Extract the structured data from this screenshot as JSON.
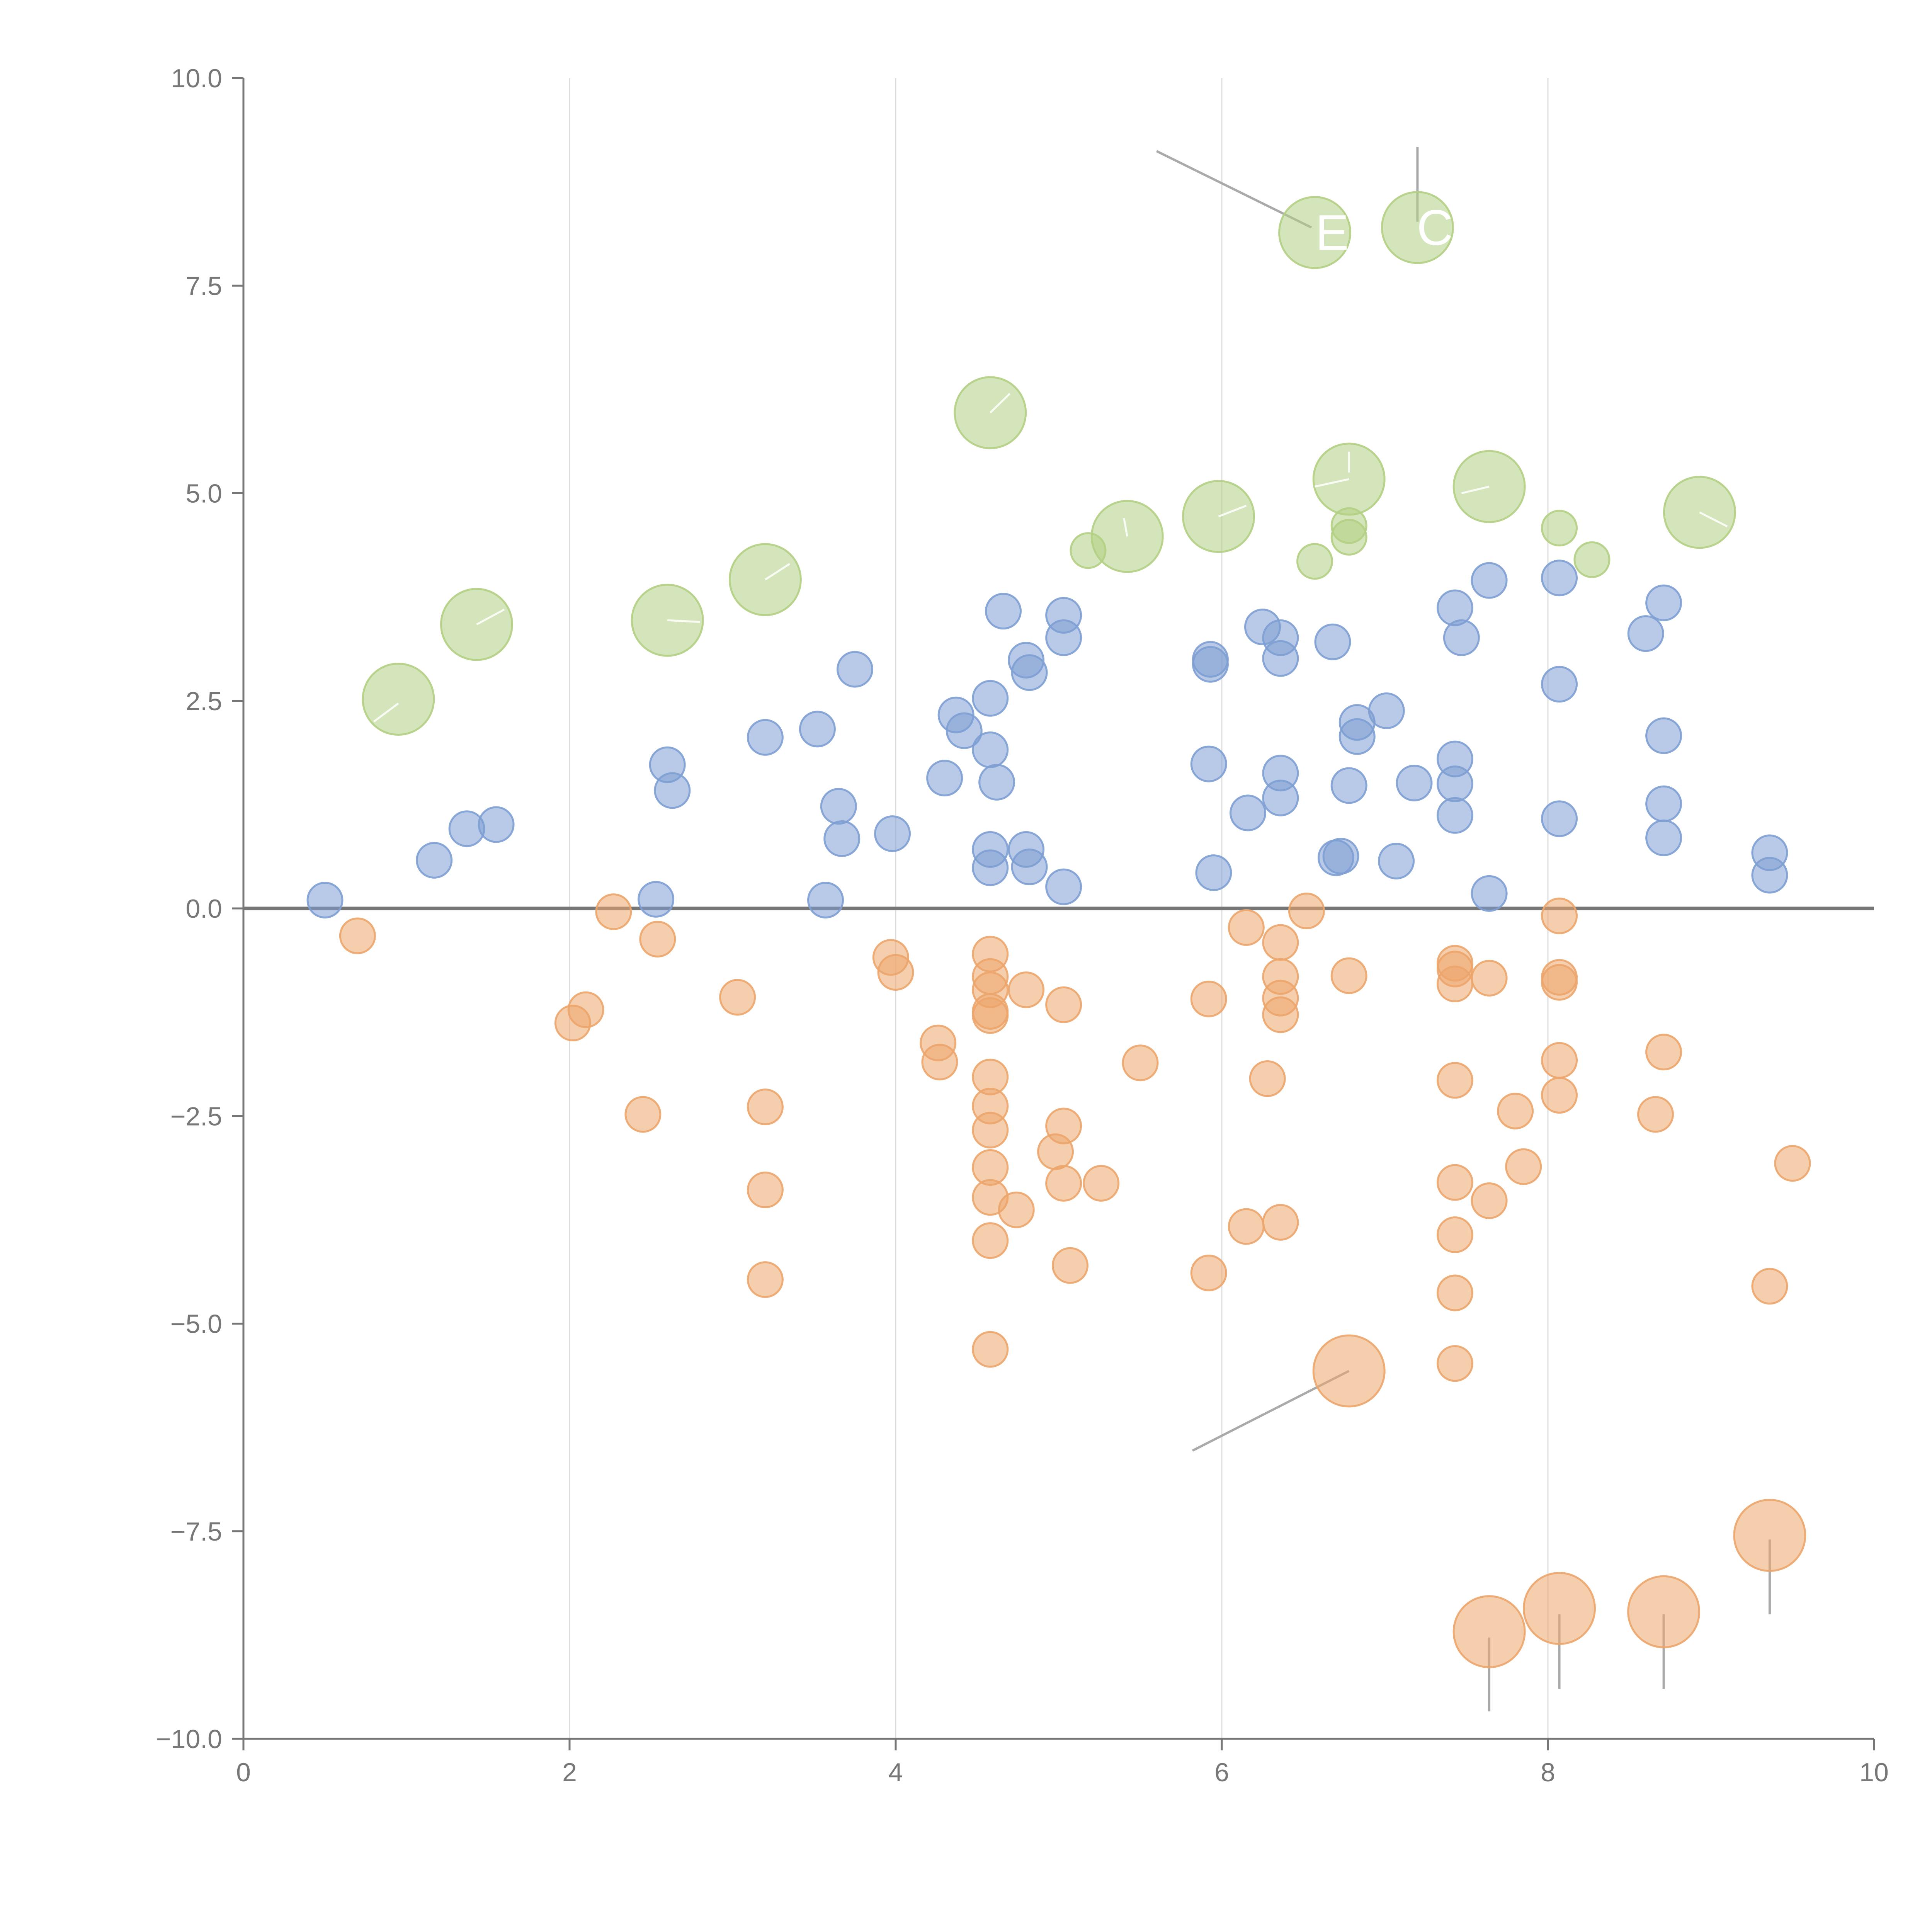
{
  "chart_data": {
    "type": "scatter",
    "title": "",
    "xlabel": "",
    "ylabel": "",
    "xlim": [
      0,
      10
    ],
    "ylim": [
      -10,
      10
    ],
    "x_ticks": [
      0,
      2,
      4,
      6,
      8,
      10
    ],
    "y_ticks": [
      10,
      7.5,
      5,
      2.5,
      0,
      -2.5,
      -5,
      -7.5,
      -10
    ],
    "x_tick_labels": [
      "0",
      "2",
      "4",
      "6",
      "8",
      "10"
    ],
    "y_tick_labels": [
      "10.0",
      "7.5",
      "5.0",
      "2.5",
      "0.0",
      "−2.5",
      "−5.0",
      "−7.5",
      "−10.0"
    ],
    "grid": "vertical",
    "colors": {
      "blue": "#7e9fd3",
      "orange": "#eca56b",
      "green": "#b3cf84",
      "axis": "#777777",
      "zero_line": "#777777",
      "grid": "#dddddd",
      "leader": "#aaaaaa"
    },
    "series": [
      {
        "name": "blue",
        "color": "#7e9fd3",
        "points": [
          [
            0.5,
            0.1
          ],
          [
            1.17,
            0.58
          ],
          [
            1.37,
            0.96
          ],
          [
            1.55,
            1.01
          ],
          [
            2.53,
            0.11
          ],
          [
            2.6,
            1.73
          ],
          [
            2.63,
            1.42
          ],
          [
            3.2,
            2.06
          ],
          [
            3.52,
            2.16
          ],
          [
            3.57,
            0.1
          ],
          [
            3.65,
            1.23
          ],
          [
            3.67,
            0.84
          ],
          [
            3.75,
            2.88
          ],
          [
            3.98,
            0.9
          ],
          [
            4.3,
            1.57
          ],
          [
            4.37,
            2.33
          ],
          [
            4.42,
            2.14
          ],
          [
            4.58,
            2.53
          ],
          [
            4.58,
            1.91
          ],
          [
            4.58,
            0.71
          ],
          [
            4.58,
            0.49
          ],
          [
            4.62,
            1.52
          ],
          [
            4.66,
            3.58
          ],
          [
            4.8,
            2.99
          ],
          [
            4.82,
            2.84
          ],
          [
            4.8,
            0.71
          ],
          [
            4.82,
            0.5
          ],
          [
            5.03,
            3.53
          ],
          [
            5.03,
            3.26
          ],
          [
            5.03,
            0.26
          ],
          [
            5.93,
            3.0
          ],
          [
            5.93,
            2.94
          ],
          [
            5.92,
            1.74
          ],
          [
            5.95,
            0.43
          ],
          [
            6.16,
            1.15
          ],
          [
            6.25,
            3.39
          ],
          [
            6.36,
            3.26
          ],
          [
            6.36,
            3.01
          ],
          [
            6.36,
            1.63
          ],
          [
            6.36,
            1.33
          ],
          [
            6.68,
            3.21
          ],
          [
            6.7,
            0.61
          ],
          [
            6.73,
            0.63
          ],
          [
            6.78,
            1.48
          ],
          [
            6.83,
            2.24
          ],
          [
            6.83,
            2.07
          ],
          [
            7.01,
            2.38
          ],
          [
            7.07,
            0.57
          ],
          [
            7.18,
            1.51
          ],
          [
            7.43,
            3.62
          ],
          [
            7.47,
            3.26
          ],
          [
            7.43,
            1.8
          ],
          [
            7.43,
            1.5
          ],
          [
            7.43,
            1.12
          ],
          [
            7.64,
            3.95
          ],
          [
            7.64,
            0.18
          ],
          [
            8.07,
            3.98
          ],
          [
            8.07,
            2.7
          ],
          [
            8.07,
            1.08
          ],
          [
            8.6,
            3.31
          ],
          [
            8.71,
            3.68
          ],
          [
            8.71,
            2.08
          ],
          [
            8.71,
            1.26
          ],
          [
            8.71,
            0.85
          ],
          [
            9.36,
            0.67
          ],
          [
            9.36,
            0.4
          ]
        ]
      },
      {
        "name": "orange",
        "color": "#eca56b",
        "points": [
          [
            0.7,
            -0.33
          ],
          [
            2.02,
            -1.38
          ],
          [
            2.1,
            -1.22
          ],
          [
            2.27,
            -0.04
          ],
          [
            2.45,
            -2.48
          ],
          [
            2.54,
            -0.37
          ],
          [
            3.03,
            -1.07
          ],
          [
            3.2,
            -2.39
          ],
          [
            3.2,
            -3.39
          ],
          [
            3.2,
            -4.47
          ],
          [
            3.97,
            -0.59
          ],
          [
            4.0,
            -0.77
          ],
          [
            4.26,
            -1.62
          ],
          [
            4.27,
            -1.85
          ],
          [
            4.58,
            -0.55
          ],
          [
            4.58,
            -0.82
          ],
          [
            4.58,
            -0.98
          ],
          [
            4.58,
            -1.24
          ],
          [
            4.58,
            -1.29
          ],
          [
            4.58,
            -2.03
          ],
          [
            4.58,
            -2.38
          ],
          [
            4.58,
            -2.67
          ],
          [
            4.58,
            -3.12
          ],
          [
            4.58,
            -3.48
          ],
          [
            4.58,
            -4.0
          ],
          [
            4.58,
            -5.31
          ],
          [
            4.74,
            -3.63
          ],
          [
            4.8,
            -0.98
          ],
          [
            4.98,
            -2.93
          ],
          [
            5.03,
            -1.16
          ],
          [
            5.03,
            -2.62
          ],
          [
            5.03,
            -3.31
          ],
          [
            5.07,
            -4.3
          ],
          [
            5.26,
            -3.31
          ],
          [
            5.5,
            -1.86
          ],
          [
            5.92,
            -1.09
          ],
          [
            5.92,
            -4.39
          ],
          [
            6.15,
            -0.23
          ],
          [
            6.15,
            -3.83
          ],
          [
            6.28,
            -2.05
          ],
          [
            6.36,
            -0.41
          ],
          [
            6.36,
            -0.82
          ],
          [
            6.36,
            -1.08
          ],
          [
            6.36,
            -1.28
          ],
          [
            6.36,
            -3.78
          ],
          [
            6.52,
            -0.03
          ],
          [
            6.78,
            -0.81
          ],
          [
            7.43,
            -0.66
          ],
          [
            7.43,
            -0.73
          ],
          [
            7.43,
            -0.91
          ],
          [
            7.43,
            -2.07
          ],
          [
            7.43,
            -3.3
          ],
          [
            7.43,
            -3.93
          ],
          [
            7.43,
            -4.63
          ],
          [
            7.43,
            -5.48
          ],
          [
            7.64,
            -0.84
          ],
          [
            7.64,
            -3.52
          ],
          [
            7.8,
            -2.44
          ],
          [
            7.85,
            -3.11
          ],
          [
            8.07,
            -0.09
          ],
          [
            8.07,
            -0.83
          ],
          [
            8.07,
            -0.89
          ],
          [
            8.07,
            -1.83
          ],
          [
            8.07,
            -2.25
          ],
          [
            8.66,
            -2.48
          ],
          [
            8.71,
            -1.73
          ],
          [
            9.36,
            -4.55
          ],
          [
            9.5,
            -3.07
          ]
        ]
      },
      {
        "name": "green",
        "color": "#b3cf84",
        "points": [
          [
            5.18,
            4.31
          ],
          [
            6.57,
            4.18
          ],
          [
            6.78,
            4.61
          ],
          [
            6.78,
            4.47
          ],
          [
            8.07,
            4.58
          ],
          [
            8.27,
            4.2
          ]
        ]
      }
    ],
    "large_points": [
      {
        "series": "green",
        "x": 0.95,
        "y": 2.52,
        "label": ""
      },
      {
        "series": "green",
        "x": 1.43,
        "y": 3.42,
        "label": ""
      },
      {
        "series": "green",
        "x": 2.6,
        "y": 3.47,
        "label": ""
      },
      {
        "series": "green",
        "x": 3.2,
        "y": 3.96,
        "label": ""
      },
      {
        "series": "green",
        "x": 4.58,
        "y": 5.97,
        "label": ""
      },
      {
        "series": "green",
        "x": 5.42,
        "y": 4.48,
        "label": ""
      },
      {
        "series": "green",
        "x": 5.98,
        "y": 4.72,
        "label": ""
      },
      {
        "series": "green",
        "x": 6.78,
        "y": 5.17,
        "label": ""
      },
      {
        "series": "green",
        "x": 7.64,
        "y": 5.08,
        "label": ""
      },
      {
        "series": "green",
        "x": 8.93,
        "y": 4.77,
        "label": ""
      },
      {
        "series": "green",
        "x": 6.57,
        "y": 8.14,
        "label": "E"
      },
      {
        "series": "green",
        "x": 7.2,
        "y": 8.2,
        "label": "C"
      },
      {
        "series": "orange",
        "x": 6.78,
        "y": -5.57,
        "label": ""
      },
      {
        "series": "orange",
        "x": 7.64,
        "y": -8.71,
        "label": ""
      },
      {
        "series": "orange",
        "x": 8.07,
        "y": -8.43,
        "label": ""
      },
      {
        "series": "orange",
        "x": 8.71,
        "y": -8.47,
        "label": ""
      },
      {
        "series": "orange",
        "x": 9.36,
        "y": -7.55,
        "label": ""
      }
    ],
    "leader_lines": [
      {
        "from": [
          5.6,
          9.12
        ],
        "to": [
          6.55,
          8.2
        ],
        "color": "gray"
      },
      {
        "from": [
          7.2,
          9.17
        ],
        "to": [
          7.2,
          8.27
        ],
        "color": "gray"
      },
      {
        "from": [
          6.78,
          -5.57
        ],
        "to": [
          5.82,
          -6.53
        ],
        "color": "gray"
      },
      {
        "from": [
          7.64,
          -8.78
        ],
        "to": [
          7.64,
          -9.67
        ],
        "color": "gray"
      },
      {
        "from": [
          8.07,
          -8.5
        ],
        "to": [
          8.07,
          -9.4
        ],
        "color": "gray"
      },
      {
        "from": [
          8.71,
          -8.5
        ],
        "to": [
          8.71,
          -9.4
        ],
        "color": "gray"
      },
      {
        "from": [
          9.36,
          -7.6
        ],
        "to": [
          9.36,
          -8.5
        ],
        "color": "gray"
      },
      {
        "from": [
          0.95,
          2.47
        ],
        "to": [
          0.8,
          2.25
        ],
        "color": "white"
      },
      {
        "from": [
          1.43,
          3.42
        ],
        "to": [
          1.6,
          3.6
        ],
        "color": "white"
      },
      {
        "from": [
          2.6,
          3.47
        ],
        "to": [
          2.8,
          3.45
        ],
        "color": "white"
      },
      {
        "from": [
          3.2,
          3.96
        ],
        "to": [
          3.35,
          4.15
        ],
        "color": "white"
      },
      {
        "from": [
          4.58,
          5.97
        ],
        "to": [
          4.7,
          6.2
        ],
        "color": "white"
      },
      {
        "from": [
          5.42,
          4.48
        ],
        "to": [
          5.4,
          4.7
        ],
        "color": "white"
      },
      {
        "from": [
          5.98,
          4.72
        ],
        "to": [
          6.15,
          4.85
        ],
        "color": "white"
      },
      {
        "from": [
          6.78,
          5.17
        ],
        "to": [
          6.57,
          5.08
        ],
        "color": "white"
      },
      {
        "from": [
          6.78,
          5.25
        ],
        "to": [
          6.78,
          5.5
        ],
        "color": "white"
      },
      {
        "from": [
          7.64,
          5.08
        ],
        "to": [
          7.47,
          5.0
        ],
        "color": "white"
      },
      {
        "from": [
          8.93,
          4.77
        ],
        "to": [
          9.1,
          4.6
        ],
        "color": "white"
      }
    ]
  }
}
